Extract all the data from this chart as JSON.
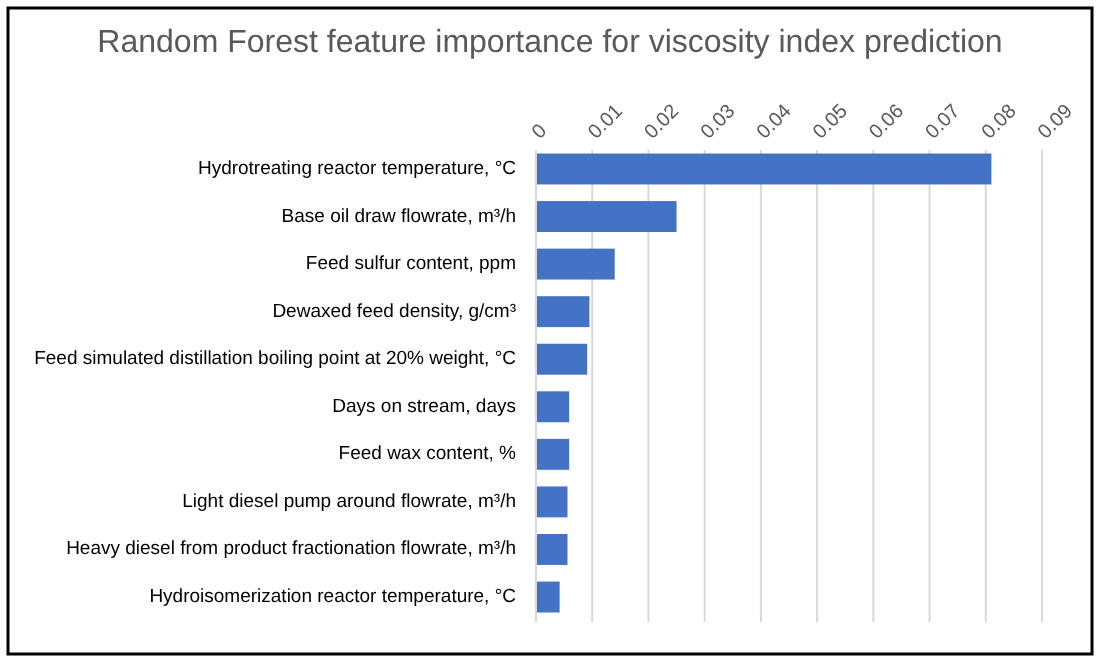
{
  "chart_data": {
    "type": "bar",
    "orientation": "horizontal",
    "title": "Random Forest feature importance for viscosity index prediction",
    "categories": [
      "Hydrotreating reactor temperature, °C",
      "Base oil draw flowrate, m³/h",
      "Feed sulfur content, ppm",
      "Dewaxed feed density, g/cm³",
      "Feed simulated distillation boiling point at 20% weight, °C",
      "Days on stream, days",
      "Feed wax content, %",
      "Light diesel pump around flowrate, m³/h",
      "Heavy diesel from product fractionation flowrate, m³/h",
      "Hydroisomerization reactor temperature, °C"
    ],
    "values": [
      0.081,
      0.025,
      0.014,
      0.0095,
      0.0091,
      0.0059,
      0.0059,
      0.0056,
      0.0056,
      0.0042
    ],
    "color": "#4472c4",
    "xlim": [
      0,
      0.09
    ],
    "xticks": [
      0,
      0.01,
      0.02,
      0.03,
      0.04,
      0.05,
      0.06,
      0.07,
      0.08,
      0.09
    ],
    "grid": "x"
  }
}
